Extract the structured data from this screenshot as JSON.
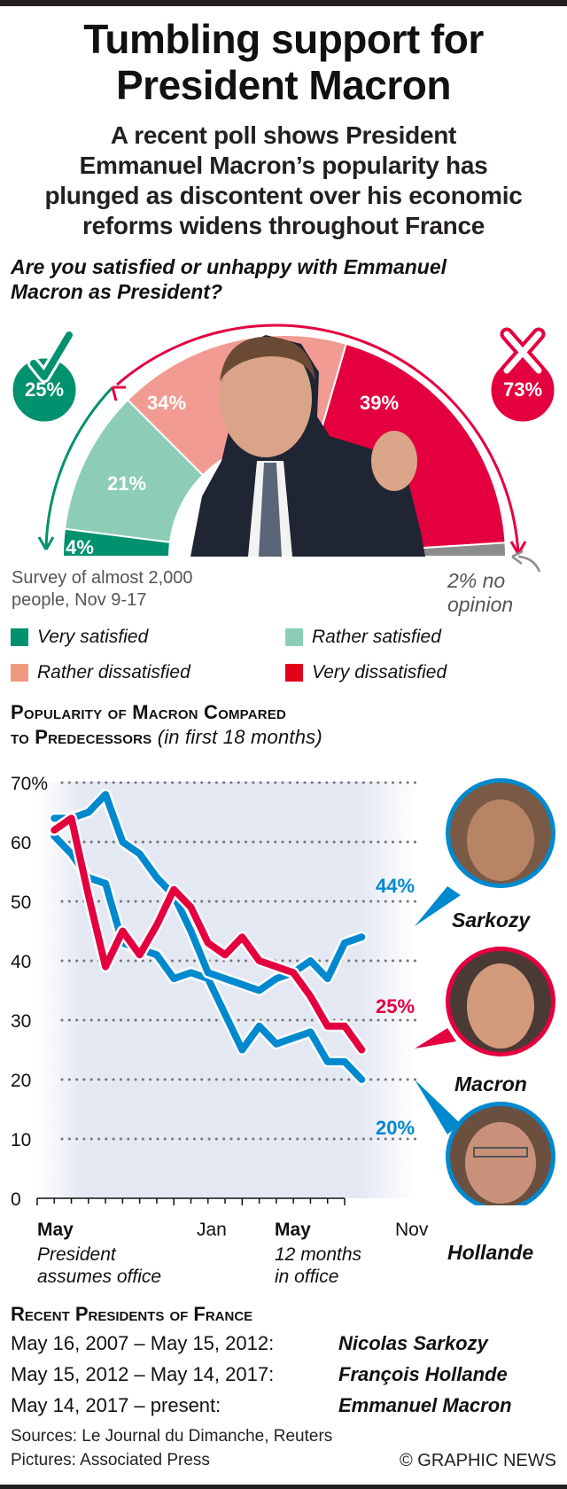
{
  "header": {
    "title_line1": "Tumbling support for",
    "title_line2": "President Macron",
    "subtitle_lines": [
      "A recent poll shows President",
      "Emmanuel Macron’s popularity has",
      "plunged as discontent over his economic",
      "reforms widens throughout France"
    ]
  },
  "poll": {
    "question_line1": "Are you satisfied or unhappy with Emmanuel",
    "question_line2": "Macron as President?",
    "satisfied_total": "25%",
    "dissatisfied_total": "73%",
    "segments": [
      {
        "name": "Very satisfied",
        "value": 4,
        "label": "4%",
        "color": "#00916e"
      },
      {
        "name": "Rather satisfied",
        "value": 21,
        "label": "21%",
        "color": "#8dcdb5"
      },
      {
        "name": "Rather dissatisfied",
        "value": 34,
        "label": "34%",
        "color": "#f29b92"
      },
      {
        "name": "Very dissatisfied",
        "value": 39,
        "label": "39%",
        "color": "#e4003f"
      },
      {
        "name": "No opinion",
        "value": 2,
        "label": "",
        "color": "#8c8c8c"
      }
    ],
    "survey_line1": "Survey of almost 2,000",
    "survey_line2": "people, Nov 9-17",
    "no_opinion_line1": "2% no",
    "no_opinion_line2": "opinion",
    "legend": [
      {
        "label": "Very satisfied",
        "color": "#00916e"
      },
      {
        "label": "Rather satisfied",
        "color": "#8dcdb5"
      },
      {
        "label": "Rather dissatisfied",
        "color": "#ee9a80"
      },
      {
        "label": "Very dissatisfied",
        "color": "#e2001a"
      }
    ],
    "colors": {
      "green": "#00916e",
      "red": "#e4003f",
      "grey": "#8c8c8c"
    }
  },
  "chart_data": {
    "type": "line",
    "title": "Popularity of Macron compared to predecessors",
    "title_line1": "Popularity of Macron Compared",
    "title_line2": "to Predecessors",
    "title_note": "(in first 18 months)",
    "xlabel": "",
    "ylabel": "",
    "ylim": [
      0,
      70
    ],
    "xlim": [
      0,
      18
    ],
    "yticks": [
      0,
      10,
      20,
      30,
      40,
      50,
      60,
      70
    ],
    "ytick_labels": [
      "0",
      "10",
      "20",
      "30",
      "40",
      "50",
      "60",
      "70%"
    ],
    "x": [
      0,
      1,
      2,
      3,
      4,
      5,
      6,
      7,
      8,
      9,
      10,
      11,
      12,
      13,
      14,
      15,
      16,
      17,
      18
    ],
    "x_tick_labels": [
      {
        "month": 0,
        "label": "May",
        "bold": true,
        "note1": "President",
        "note2": "assumes office"
      },
      {
        "month": 8,
        "label": "Jan",
        "bold": false,
        "note1": "",
        "note2": ""
      },
      {
        "month": 12,
        "label": "May",
        "bold": true,
        "note1": "12 months",
        "note2": "in office"
      },
      {
        "month": 18,
        "label": "Nov",
        "bold": false,
        "note1": "",
        "note2": ""
      }
    ],
    "grid": true,
    "series": [
      {
        "name": "Sarkozy",
        "color": "#0089cf",
        "end_label": "44%",
        "values": [
          64,
          64,
          65,
          68,
          60,
          58,
          54,
          51,
          45,
          38,
          37,
          36,
          35,
          37,
          38,
          40,
          37,
          43,
          44
        ]
      },
      {
        "name": "Hollande",
        "color": "#0089cf",
        "end_label": "20%",
        "values": [
          61,
          58,
          54,
          53,
          43,
          42,
          41,
          37,
          38,
          37,
          31,
          25,
          29,
          26,
          27,
          28,
          23,
          23,
          20
        ]
      },
      {
        "name": "Macron",
        "color": "#e4003f",
        "end_label": "25%",
        "values": [
          62,
          64,
          51,
          39,
          45,
          41,
          46,
          52,
          49,
          43,
          41,
          44,
          40,
          39,
          38,
          34,
          29,
          29,
          25
        ]
      }
    ]
  },
  "presidents": {
    "title": "Recent Presidents of France",
    "rows": [
      {
        "dates": "May 16, 2007 – May 15, 2012:",
        "name": "Nicolas Sarkozy"
      },
      {
        "dates": "May 15, 2012 – May 14, 2017:",
        "name": "François Hollande"
      },
      {
        "dates": "May 14, 2017 – present:",
        "name": "Emmanuel Macron"
      }
    ]
  },
  "footer": {
    "sources": "Sources: Le Journal du Dimanche, Reuters",
    "pictures": "Pictures: Associated Press",
    "copyright": "© GRAPHIC NEWS"
  }
}
